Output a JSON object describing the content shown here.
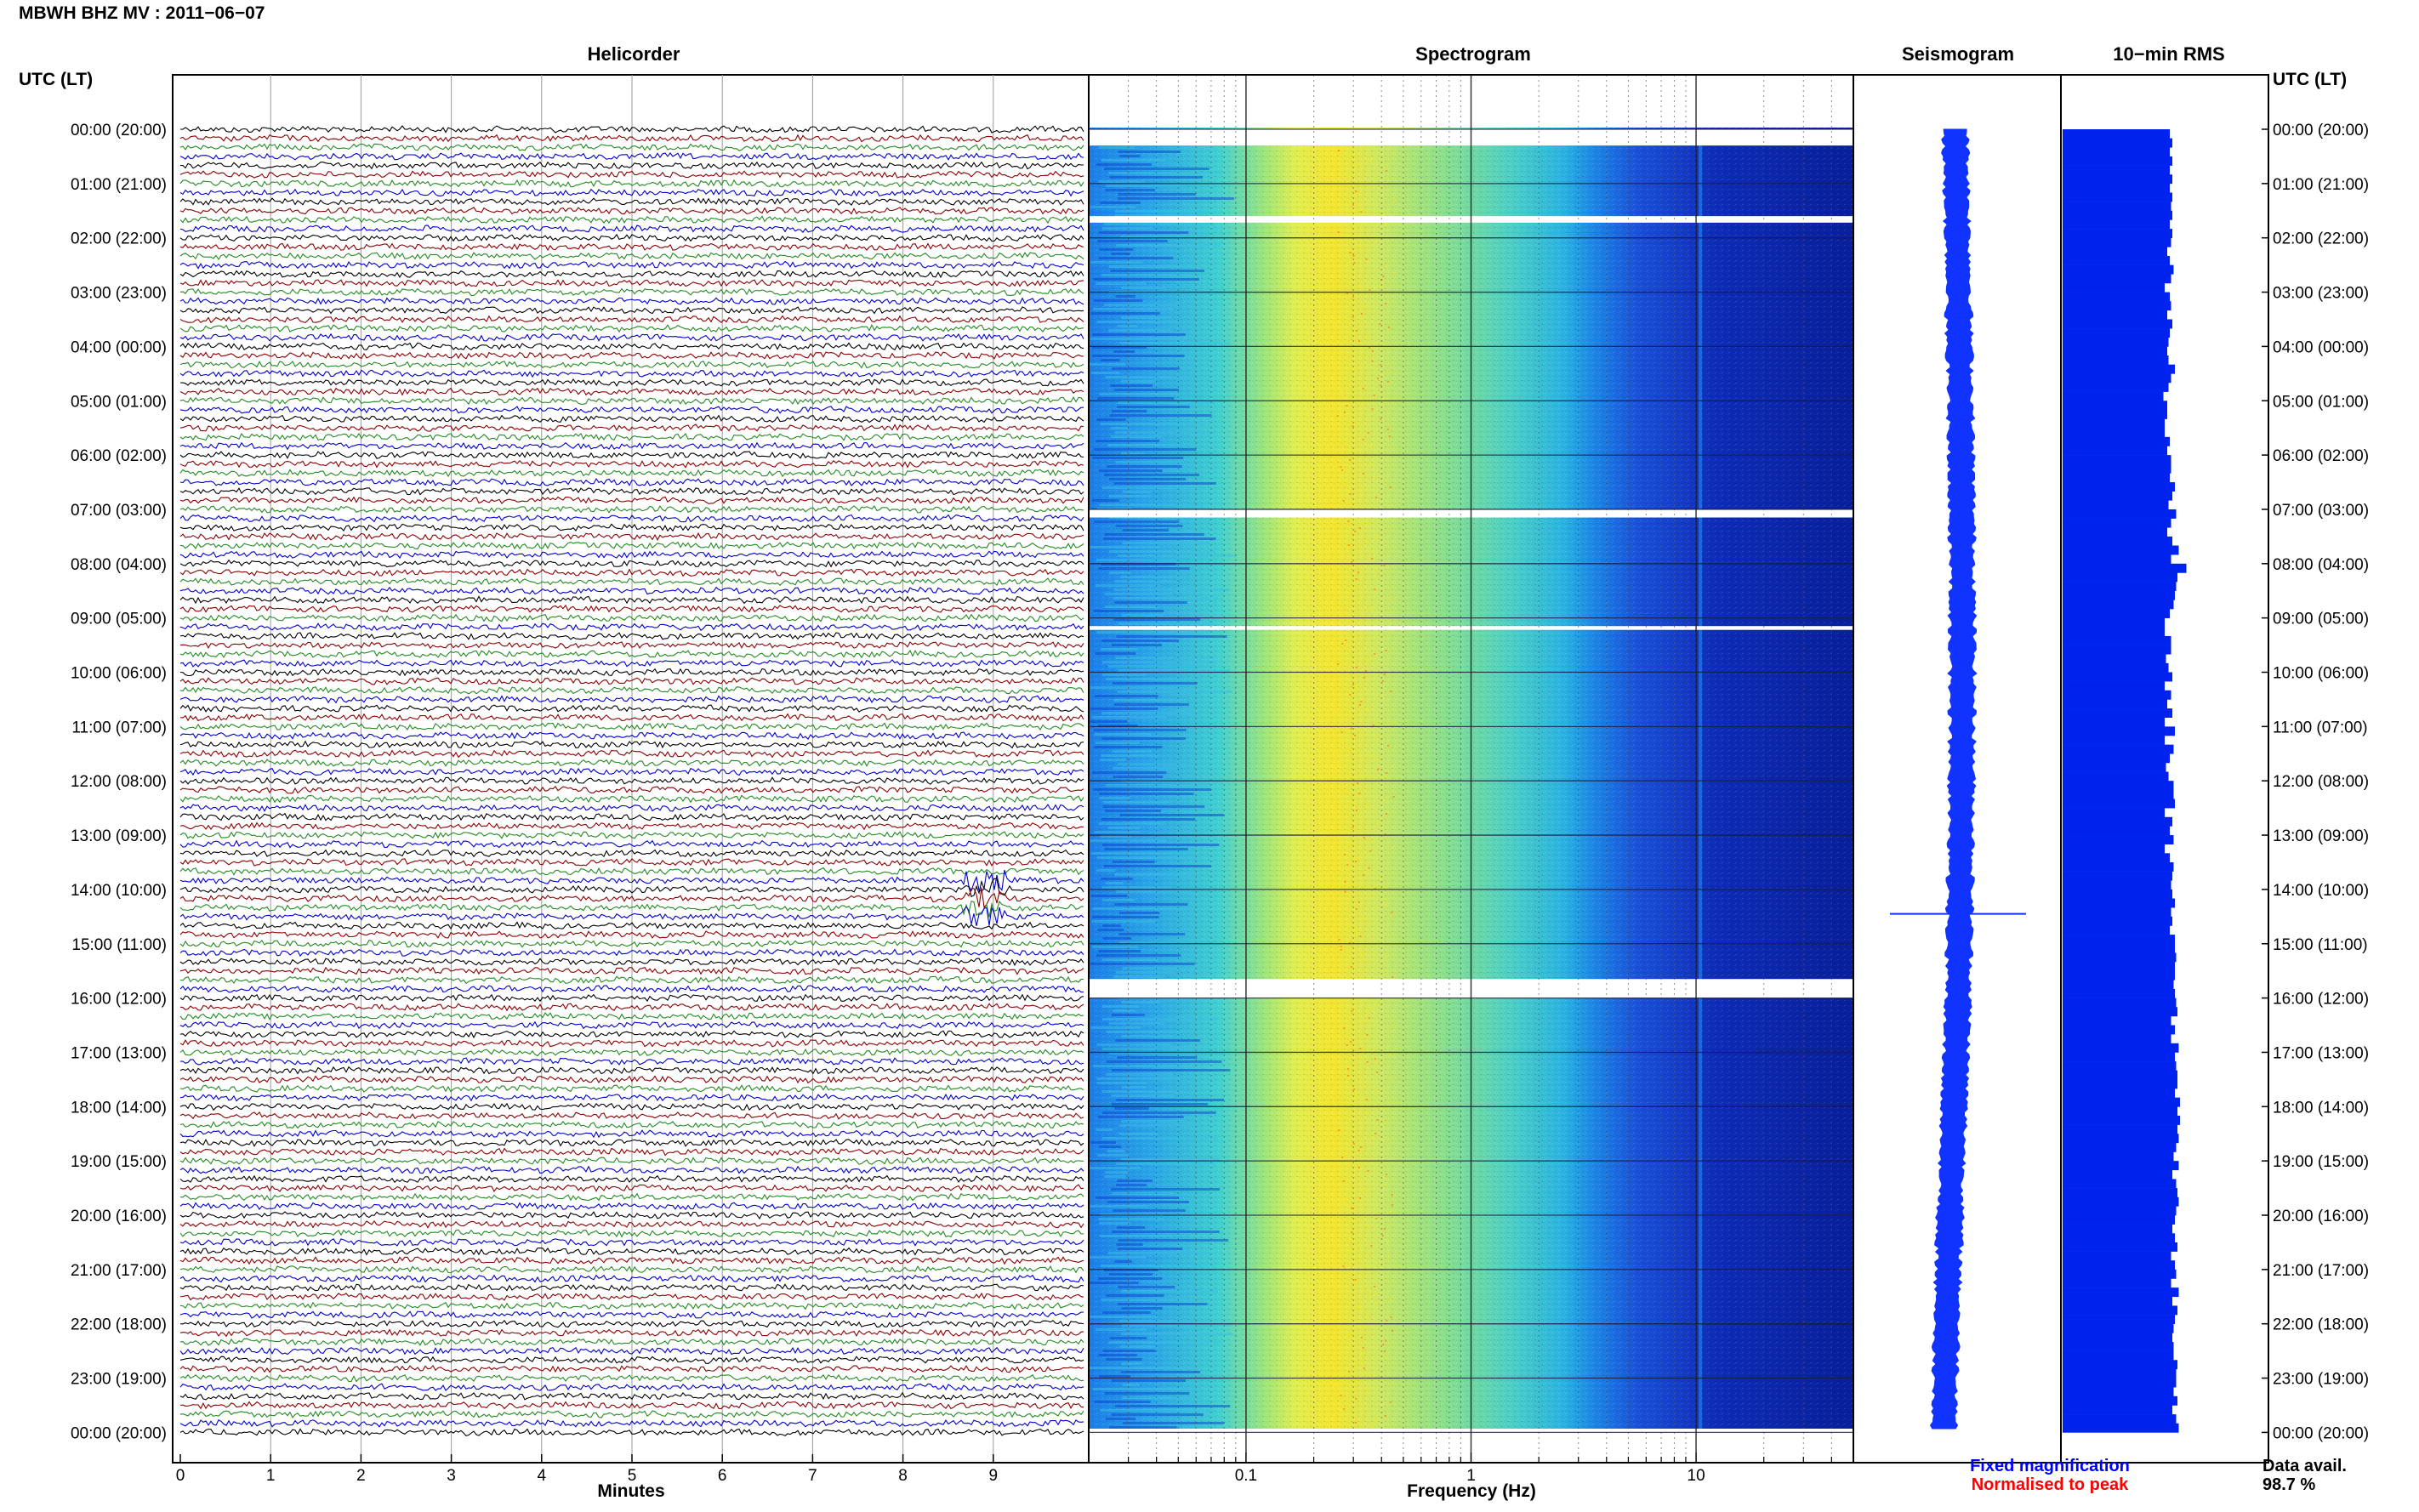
{
  "header": {
    "station_title": "MBWH BHZ MV : 2011−06−07",
    "time_axis_label": "UTC (LT)"
  },
  "panels": {
    "helicorder": "Helicorder",
    "spectrogram": "Spectrogram",
    "seismogram": "Seismogram",
    "rms": "10−min RMS"
  },
  "footer": {
    "fixed_magnification": "Fixed magnification",
    "normalised_to_peak": "Normalised to peak",
    "data_avail_label": "Data avail.",
    "data_avail_value": "98.7 %"
  },
  "colors": {
    "helicorder_traces": [
      "#000000",
      "#8b0000",
      "#228b22",
      "#0000cd"
    ],
    "fixed_magnification": "#0000ff",
    "normalised_to_peak": "#ff0000",
    "rms_bars": "#0022ee",
    "seismogram_trace": "#1133ff"
  },
  "chart_data": [
    {
      "type": "line",
      "name": "helicorder",
      "xlabel": "Minutes",
      "xlim": [
        0,
        10
      ],
      "xticks": [
        "0",
        "1",
        "2",
        "3",
        "4",
        "5",
        "6",
        "7",
        "8",
        "9"
      ],
      "y_tick_labels": [
        "00:00 (20:00)",
        "01:00 (21:00)",
        "02:00 (22:00)",
        "03:00 (23:00)",
        "04:00 (00:00)",
        "05:00 (01:00)",
        "06:00 (02:00)",
        "07:00 (03:00)",
        "08:00 (04:00)",
        "09:00 (05:00)",
        "10:00 (06:00)",
        "11:00 (07:00)",
        "12:00 (08:00)",
        "13:00 (09:00)",
        "14:00 (10:00)",
        "15:00 (11:00)",
        "16:00 (12:00)",
        "17:00 (13:00)",
        "18:00 (14:00)",
        "19:00 (15:00)",
        "20:00 (16:00)",
        "21:00 (17:00)",
        "22:00 (18:00)",
        "23:00 (19:00)",
        "00:00 (20:00)"
      ],
      "lines_per_hour": 6,
      "hours": 24,
      "event": {
        "hour": 14.15,
        "minute": 8.9
      }
    },
    {
      "type": "heatmap",
      "name": "spectrogram",
      "xlabel": "Frequency (Hz)",
      "x_scale": "log",
      "xlim": [
        0.02,
        50
      ],
      "xticks": [
        "0.1",
        "1",
        "10"
      ],
      "peak_band_hz": [
        0.25,
        0.45
      ],
      "gaps_hours": [
        [
          0.0,
          0.3
        ],
        [
          1.6,
          1.72
        ],
        [
          7.0,
          7.15
        ],
        [
          9.15,
          9.22
        ],
        [
          15.65,
          16.0
        ]
      ]
    },
    {
      "type": "line",
      "name": "seismogram",
      "spike_hour": 14.45
    },
    {
      "type": "bar",
      "name": "rms",
      "interval_minutes": 10,
      "values": [
        0.84,
        0.86,
        0.84,
        0.86,
        0.84,
        0.86,
        0.84,
        0.86,
        0.85,
        0.86,
        0.84,
        0.86,
        0.85,
        0.82,
        0.84,
        0.87,
        0.85,
        0.8,
        0.84,
        0.85,
        0.82,
        0.86,
        0.84,
        0.83,
        0.82,
        0.83,
        0.88,
        0.85,
        0.83,
        0.79,
        0.82,
        0.82,
        0.8,
        0.8,
        0.84,
        0.82,
        0.85,
        0.85,
        0.84,
        0.88,
        0.86,
        0.83,
        0.89,
        0.85,
        0.82,
        0.86,
        0.91,
        0.85,
        0.97,
        0.9,
        0.89,
        0.88,
        0.87,
        0.84,
        0.8,
        0.8,
        0.85,
        0.85,
        0.81,
        0.83,
        0.86,
        0.8,
        0.85,
        0.82,
        0.86,
        0.8,
        0.88,
        0.8,
        0.87,
        0.84,
        0.81,
        0.83,
        0.87,
        0.87,
        0.88,
        0.8,
        0.86,
        0.84,
        0.87,
        0.8,
        0.84,
        0.87,
        0.86,
        0.85,
        0.86,
        0.88,
        0.85,
        0.86,
        0.84,
        0.88,
        0.88,
        0.89,
        0.88,
        0.88,
        0.87,
        0.88,
        0.89,
        0.9,
        0.85,
        0.88,
        0.85,
        0.91,
        0.88,
        0.89,
        0.9,
        0.9,
        0.88,
        0.92,
        0.9,
        0.92,
        0.9,
        0.91,
        0.89,
        0.87,
        0.91,
        0.86,
        0.89,
        0.9,
        0.91,
        0.89,
        0.88,
        0.86,
        0.88,
        0.9,
        0.85,
        0.88,
        0.89,
        0.85,
        0.91,
        0.86,
        0.9,
        0.88,
        0.87,
        0.86,
        0.87,
        0.87,
        0.9,
        0.89,
        0.89,
        0.87,
        0.9,
        0.86,
        0.89,
        0.91
      ]
    }
  ]
}
